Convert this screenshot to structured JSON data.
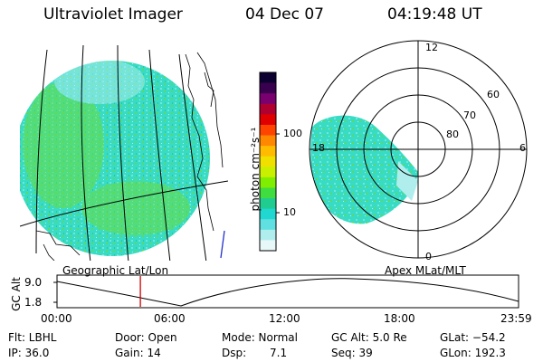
{
  "header": {
    "title": "Ultraviolet Imager",
    "date": "04 Dec 07",
    "time": "04:19:48 UT"
  },
  "colorbar": {
    "unit_label": "photon cm⁻²s⁻¹",
    "ticks": [
      "100",
      "10"
    ],
    "colors": [
      "#0b0030",
      "#3a0050",
      "#7a0070",
      "#b00030",
      "#e00000",
      "#ff4400",
      "#ff8800",
      "#ffbb00",
      "#f0e000",
      "#c8f000",
      "#80ee00",
      "#40dd40",
      "#20cc90",
      "#20d8d0",
      "#60e0e0",
      "#b0eeee",
      "#e8f8f8"
    ]
  },
  "geo_panel": {
    "label": "Geographic Lat/Lon"
  },
  "polar_panel": {
    "label": "Apex MLat/MLT",
    "mlt_labels": [
      "12",
      "18",
      "6",
      "0"
    ],
    "lat_labels": [
      "60",
      "70",
      "80"
    ]
  },
  "orbit": {
    "ylabel": "GC Alt",
    "yticks": [
      "9.0",
      "1.8"
    ],
    "xticks": [
      "00:00",
      "06:00",
      "12:00",
      "18:00",
      "23:59"
    ],
    "current_time_hours": 4.33,
    "marker_color": "#cc0000"
  },
  "status": {
    "flt": "Flt: LBHL",
    "ip": "IP: 36.0",
    "door": "Door: Open",
    "gain": "Gain: 14",
    "mode": "Mode: Normal",
    "dsp_label": "Dsp:",
    "dsp_value": "7.1",
    "gcalt": "GC Alt: 5.0 Re",
    "seq": "Seq: 39",
    "glat": "GLat: −54.2",
    "glon": "GLon: 192.3"
  }
}
